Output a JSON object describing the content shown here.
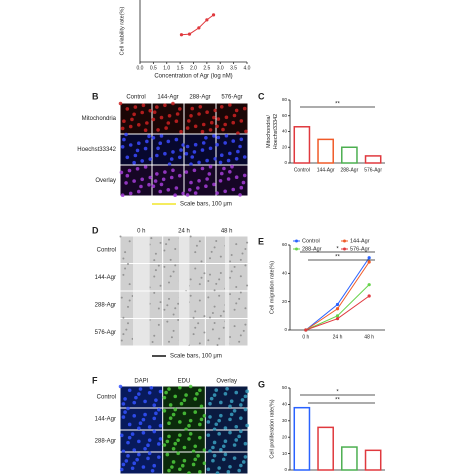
{
  "chart_data": [
    {
      "type": "line",
      "xlabel": "Concentration of Agr (log nM)",
      "ylabel": "Cell viability rate(%)",
      "x": [
        1.55,
        1.85,
        2.2,
        2.5,
        2.75
      ],
      "series": [
        {
          "color": "#e0393e",
          "values": [
            44,
            45,
            55,
            68,
            76
          ]
        }
      ],
      "xlim": [
        0,
        4
      ],
      "xticks": [
        {
          "value": 0,
          "label": "0.0"
        },
        {
          "value": 0.5,
          "label": "0.5"
        },
        {
          "value": 1,
          "label": "1.0"
        },
        {
          "value": 1.5,
          "label": "1.5"
        },
        {
          "value": 2,
          "label": "2.0"
        },
        {
          "value": 2.5,
          "label": "2.5"
        },
        {
          "value": 3,
          "label": "3.0"
        },
        {
          "value": 3.5,
          "label": "3.5"
        },
        {
          "value": 4,
          "label": "4.0"
        }
      ],
      "ylim": [
        0,
        100
      ]
    },
    {
      "type": "bar",
      "label": "C",
      "ylabel": [
        "Mitochondria/",
        "Hoechst33342"
      ],
      "categories": [
        "Control",
        "144-Agr",
        "288-Agr",
        "576-Agr"
      ],
      "values": [
        46,
        30,
        20,
        9
      ],
      "colors": [
        "#e0393e",
        "#f05a28",
        "#4caf50",
        "#e0393e"
      ],
      "ylim": [
        0,
        80
      ],
      "yticks": [
        0,
        20,
        40,
        60,
        80
      ],
      "annotations": [
        "**"
      ]
    },
    {
      "type": "line",
      "label": "E",
      "ylabel": "Cell migration rate(%)",
      "categories": [
        "0 h",
        "24 h",
        "48 h"
      ],
      "series": [
        {
          "name": "Control",
          "color": "#2962ff",
          "values": [
            0,
            18,
            51
          ]
        },
        {
          "name": "144-Agr",
          "color": "#f05a28",
          "values": [
            0,
            15,
            48
          ]
        },
        {
          "name": "288-Agr",
          "color": "#66d34a",
          "values": [
            0,
            10,
            32
          ]
        },
        {
          "name": "576-Agr",
          "color": "#e0393e",
          "values": [
            0,
            8,
            24
          ]
        }
      ],
      "ylim": [
        0,
        60
      ],
      "yticks": [
        0,
        20,
        40,
        60
      ],
      "annotations": [
        "*",
        "**"
      ]
    },
    {
      "type": "bar",
      "label": "G",
      "ylabel": "Cell proliferation rate(%)",
      "values": [
        38,
        26,
        14,
        12
      ],
      "colors": [
        "#2962ff",
        "#e0393e",
        "#4caf50",
        "#e0393e"
      ],
      "ylim": [
        0,
        50
      ],
      "yticks": [
        0,
        10,
        20,
        30,
        40,
        50
      ],
      "annotations": [
        "*",
        "**"
      ]
    }
  ],
  "panels": [
    {
      "label": "B",
      "columns": [
        "Control",
        "144-Agr",
        "288-Agr",
        "576-Agr"
      ],
      "rows": [
        "Mitochondria",
        "Hoechst33342",
        "Overlay"
      ],
      "caption": "Scale bars, 100 μm"
    },
    {
      "label": "D",
      "columns": [
        "0 h",
        "24 h",
        "48 h"
      ],
      "rows": [
        "Control",
        "144-Agr",
        "288-Agr",
        "576-Agr"
      ],
      "caption": "Scale bars, 100 μm"
    },
    {
      "label": "F",
      "columns": [
        "DAPI",
        "EDU",
        "Overlay"
      ],
      "rows": [
        "Control",
        "144-Agr",
        "288-Agr"
      ]
    }
  ]
}
